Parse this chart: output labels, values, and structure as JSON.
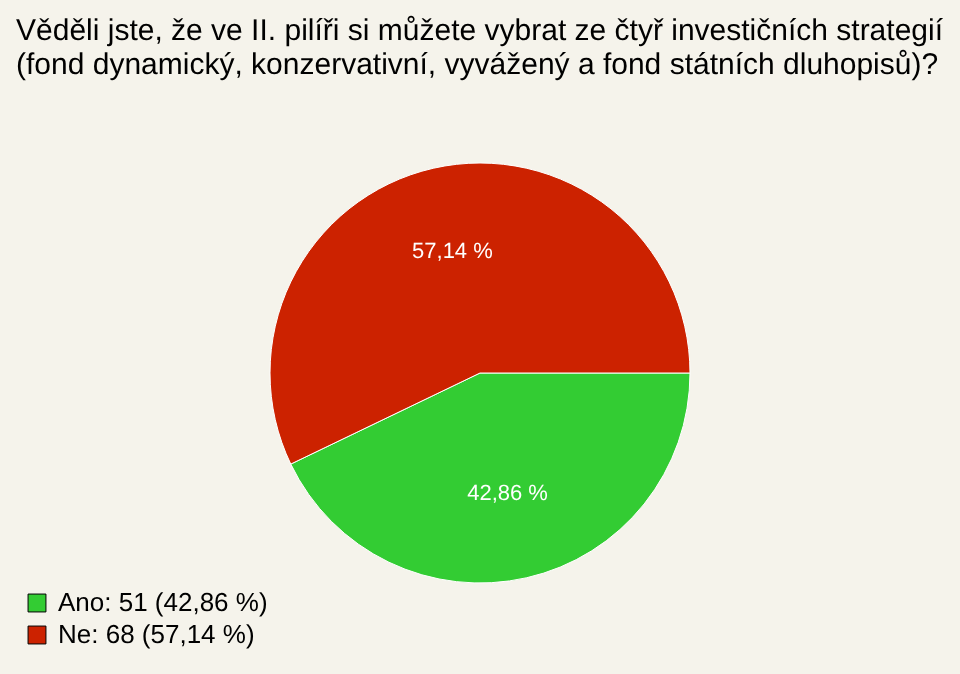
{
  "chart_data": {
    "type": "pie",
    "title": [
      "Věděli jste, že ve II. pilíři si můžete vybrat ze čtyř investičních strategií",
      "(fond dynamický, konzervativní, vyvážený a fond státních dluhopisů)?"
    ],
    "categories": [
      "Ano: 51 (42,86 %)",
      "Ne: 68 (57,14 %)"
    ],
    "values": [
      42.86,
      57.14
    ],
    "colors": [
      "#33cc33",
      "#cc2200"
    ],
    "value_labels": [
      "42,86 %",
      "57,14 %"
    ],
    "legend": "bottom left"
  }
}
